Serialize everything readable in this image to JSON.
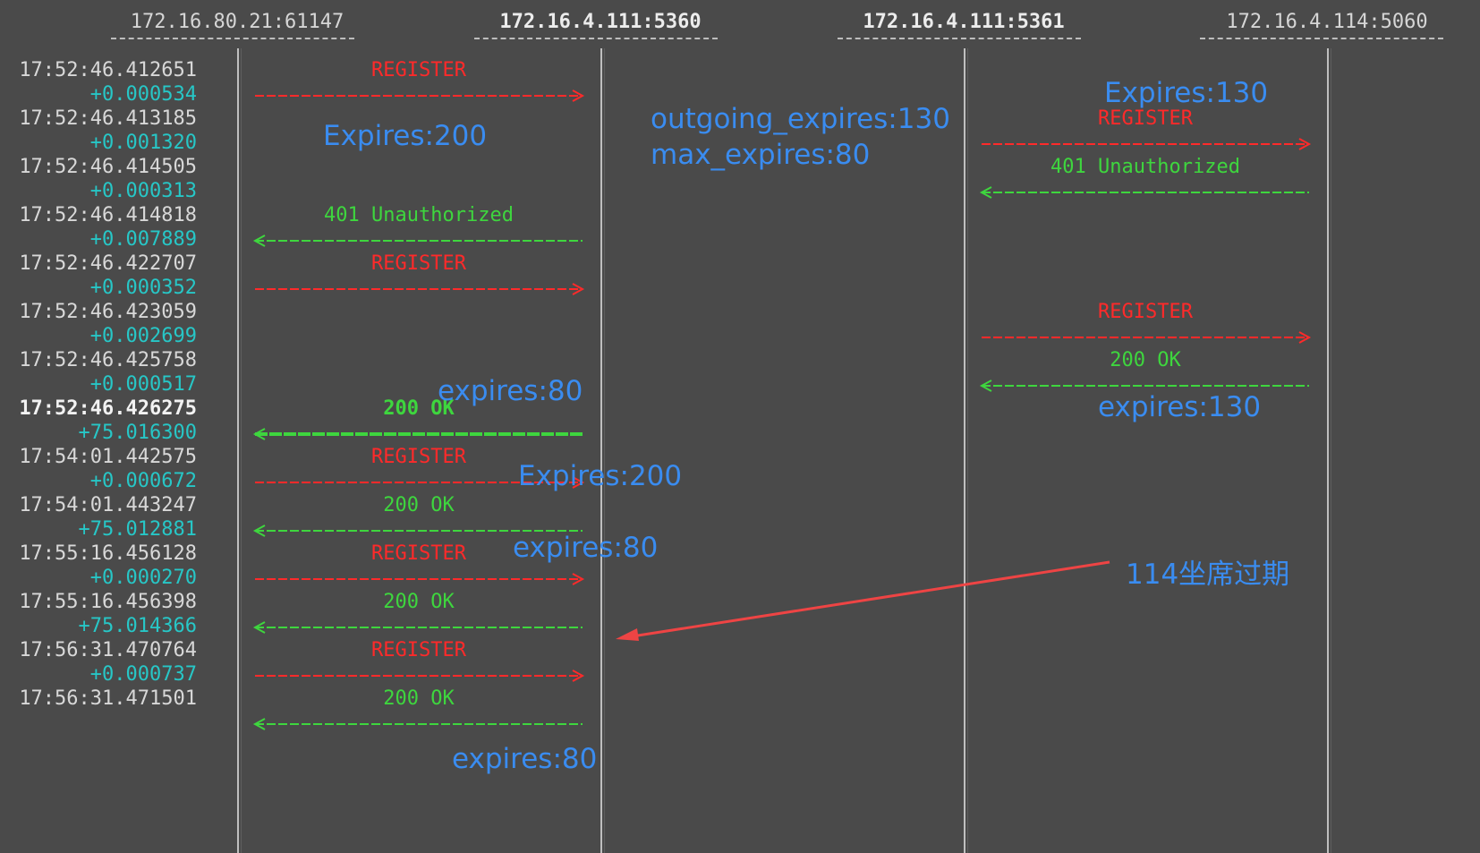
{
  "hosts": [
    {
      "label": "172.16.80.21:61147",
      "bold": false
    },
    {
      "label": "172.16.4.111:5360",
      "bold": true
    },
    {
      "label": "172.16.4.111:5361",
      "bold": true
    },
    {
      "label": "172.16.4.114:5060",
      "bold": false
    }
  ],
  "rows": [
    {
      "time": "17:52:46.412651",
      "delta": "+0.000534",
      "from": 0,
      "to": 1,
      "label": "REGISTER",
      "kind": "request"
    },
    {
      "time": "17:52:46.413185",
      "delta": "+0.001320",
      "from": 2,
      "to": 3,
      "label": "REGISTER",
      "kind": "request"
    },
    {
      "time": "17:52:46.414505",
      "delta": "+0.000313",
      "from": 3,
      "to": 2,
      "label": "401 Unauthorized",
      "kind": "response"
    },
    {
      "time": "17:52:46.414818",
      "delta": "+0.007889",
      "from": 1,
      "to": 0,
      "label": "401 Unauthorized",
      "kind": "response"
    },
    {
      "time": "17:52:46.422707",
      "delta": "+0.000352",
      "from": 0,
      "to": 1,
      "label": "REGISTER",
      "kind": "request"
    },
    {
      "time": "17:52:46.423059",
      "delta": "+0.002699",
      "from": 2,
      "to": 3,
      "label": "REGISTER",
      "kind": "request"
    },
    {
      "time": "17:52:46.425758",
      "delta": "+0.000517",
      "from": 3,
      "to": 2,
      "label": "200 OK",
      "kind": "response"
    },
    {
      "time": "17:52:46.426275",
      "delta": "+75.016300",
      "from": 1,
      "to": 0,
      "label": "200 OK",
      "kind": "response",
      "bold": true
    },
    {
      "time": "17:54:01.442575",
      "delta": "+0.000672",
      "from": 0,
      "to": 1,
      "label": "REGISTER",
      "kind": "request"
    },
    {
      "time": "17:54:01.443247",
      "delta": "+75.012881",
      "from": 1,
      "to": 0,
      "label": "200 OK",
      "kind": "response"
    },
    {
      "time": "17:55:16.456128",
      "delta": "+0.000270",
      "from": 0,
      "to": 1,
      "label": "REGISTER",
      "kind": "request"
    },
    {
      "time": "17:55:16.456398",
      "delta": "+75.014366",
      "from": 1,
      "to": 0,
      "label": "200 OK",
      "kind": "response"
    },
    {
      "time": "17:56:31.470764",
      "delta": "+0.000737",
      "from": 0,
      "to": 1,
      "label": "REGISTER",
      "kind": "request"
    },
    {
      "time": "17:56:31.471501",
      "delta": "",
      "from": 1,
      "to": 0,
      "label": "200 OK",
      "kind": "response"
    }
  ],
  "annotations": {
    "expires_130_top": "Expires:130",
    "expires_200_top": "Expires:200",
    "outgoing_expires": "outgoing_expires:130",
    "max_expires": "max_expires:80",
    "expires_80_first": "expires:80",
    "expires_130_ok": "expires:130",
    "expires_200_second": "Expires:200",
    "expires_80_second": "expires:80",
    "seat_expired": "114坐席过期",
    "expires_80_last": "expires:80"
  },
  "colors": {
    "background": "#4a4a4a",
    "request": "#ff2a2a",
    "response": "#3ed63e",
    "delta": "#27c7c7",
    "annotation": "#3a8cf0",
    "pointer_arrow": "#ee4444"
  }
}
